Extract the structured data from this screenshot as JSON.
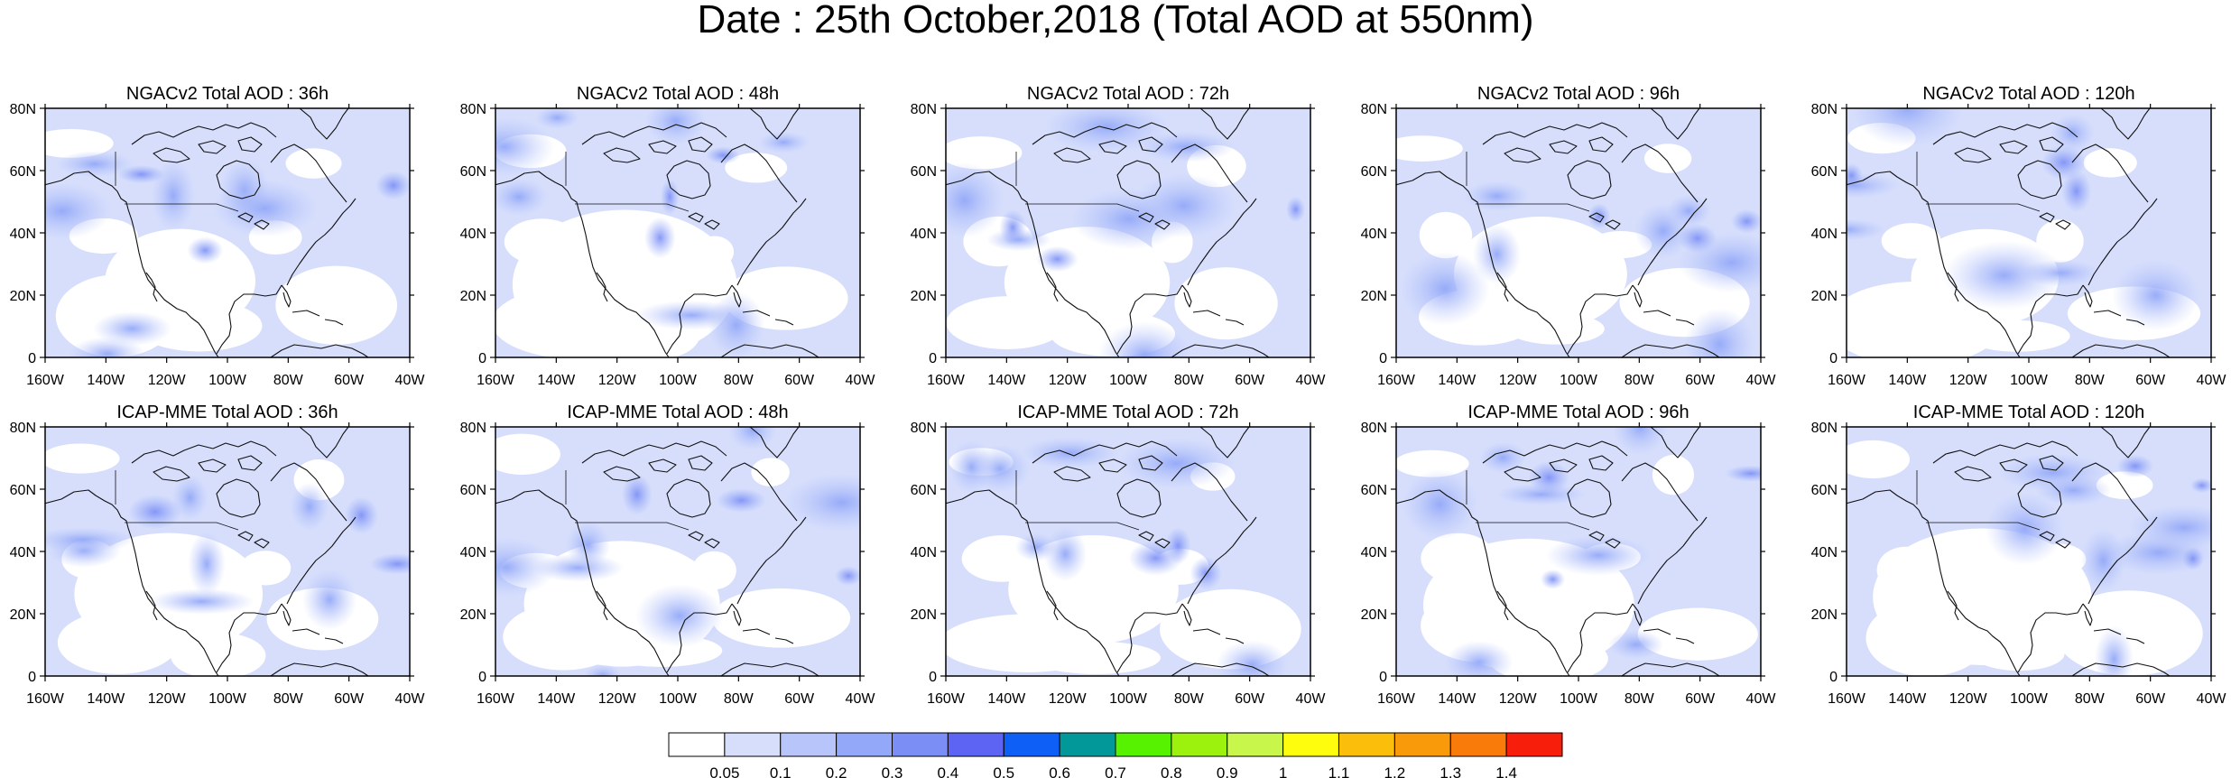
{
  "title": "Date : 25th October,2018 (Total AOD at 550nm)",
  "panels": [
    {
      "title": "NGACv2 Total AOD : 36h"
    },
    {
      "title": "NGACv2 Total AOD : 48h"
    },
    {
      "title": "NGACv2 Total AOD : 72h"
    },
    {
      "title": "NGACv2 Total AOD : 96h"
    },
    {
      "title": "NGACv2 Total AOD : 120h"
    },
    {
      "title": "ICAP-MME Total AOD : 36h"
    },
    {
      "title": "ICAP-MME Total AOD : 48h"
    },
    {
      "title": "ICAP-MME Total AOD : 72h"
    },
    {
      "title": "ICAP-MME Total AOD : 96h"
    },
    {
      "title": "ICAP-MME Total AOD : 120h"
    }
  ],
  "axes": {
    "lon_ticks": [
      "160W",
      "140W",
      "120W",
      "100W",
      "80W",
      "60W",
      "40W"
    ],
    "lat_ticks": [
      "0",
      "20N",
      "40N",
      "60N",
      "80N"
    ]
  },
  "colorbar": {
    "labels": [
      "0.05",
      "0.1",
      "0.2",
      "0.3",
      "0.4",
      "0.5",
      "0.6",
      "0.7",
      "0.8",
      "0.9",
      "1",
      "1.1",
      "1.2",
      "1.3",
      "1.4"
    ],
    "colors": [
      "#ffffff",
      "#d6defc",
      "#b7c5fa",
      "#93a8f8",
      "#7b8ef6",
      "#5d63f2",
      "#0d5ff5",
      "#02989a",
      "#57f202",
      "#9cf20c",
      "#c8f64a",
      "#fffd0e",
      "#fbbe0a",
      "#f99a0b",
      "#f97c0b",
      "#f81e0c"
    ]
  }
}
